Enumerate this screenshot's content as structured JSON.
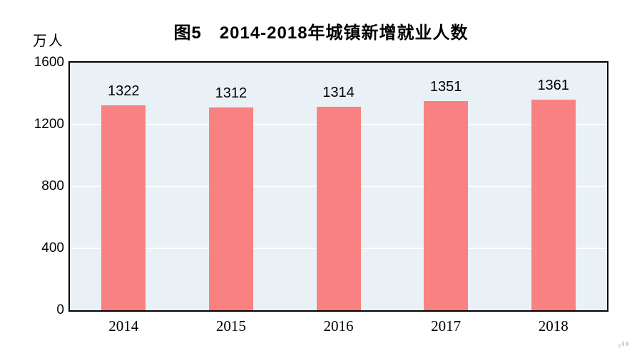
{
  "page": {
    "background": "#ffffff"
  },
  "chart_data": {
    "type": "bar",
    "title": "图5　2014-2018年城镇新增就业人数",
    "unit_label": "万人",
    "categories": [
      "2014",
      "2015",
      "2016",
      "2017",
      "2018"
    ],
    "values": [
      1322,
      1312,
      1314,
      1351,
      1361
    ],
    "xlabel": "",
    "ylabel": "万人",
    "ylim": [
      0,
      1600
    ],
    "yticks": [
      0,
      400,
      800,
      1200,
      1600
    ],
    "grid": "horizontal-white-lines",
    "legend_position": "none",
    "colors": {
      "bar": "#f98181",
      "plot_background": "#e9f1f7",
      "gridline": "#ffffff",
      "axis_border": "#000000",
      "text": "#000000"
    }
  }
}
